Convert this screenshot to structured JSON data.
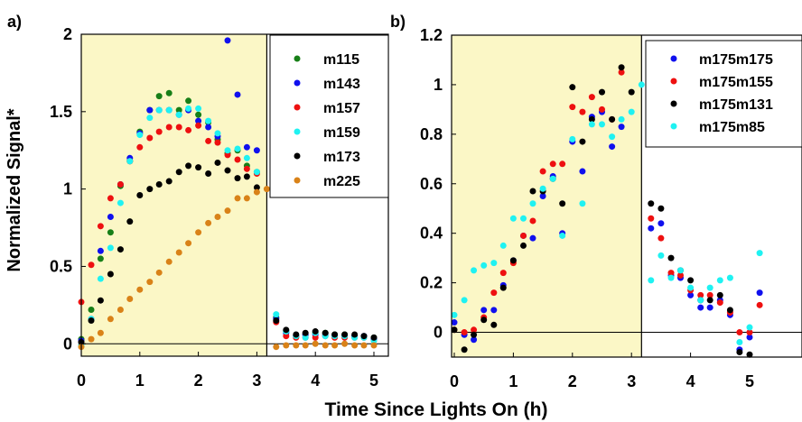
{
  "figure": {
    "xlabel": "Time Since Lights On (h)",
    "ylabel": "Normalized Signal*",
    "shade_color": "#fbf7c6",
    "colors": {
      "green": "#177f17",
      "blue": "#1010ee",
      "red": "#ee1010",
      "cyan": "#1ff2f2",
      "black": "#000000",
      "orange": "#d98218"
    }
  },
  "chart_data": [
    {
      "panel_label": "a)",
      "type": "scatter",
      "xlim": [
        -0.05,
        5.25
      ],
      "ylim": [
        -0.08,
        2.0
      ],
      "xticks": [
        0,
        1,
        2,
        3,
        4,
        5
      ],
      "xtick_labels": [
        "0",
        "1",
        "2",
        "3",
        "4",
        "5"
      ],
      "yticks": [
        0,
        0.5,
        1,
        1.5,
        2
      ],
      "ytick_labels": [
        "0",
        "0.5",
        "1",
        "1.5",
        "2"
      ],
      "shade_x": [
        -0.05,
        3.17
      ],
      "lights_off_line_x": 3.17,
      "zero_line_y": 0,
      "legend_position": "top-right",
      "series": [
        {
          "name": "m115",
          "color": "#177f17",
          "x": [
            0.0,
            0.17,
            0.33,
            0.5,
            0.67,
            0.83,
            1.0,
            1.17,
            1.33,
            1.5,
            1.67,
            1.83,
            2.0,
            2.17,
            2.33,
            2.5,
            2.67,
            2.83,
            3.0,
            3.33,
            3.5,
            3.67,
            3.83,
            4.0,
            4.17,
            4.33,
            4.5,
            4.67,
            4.83,
            5.0
          ],
          "y": [
            0.03,
            0.22,
            0.55,
            0.72,
            1.02,
            1.18,
            1.37,
            1.51,
            1.6,
            1.62,
            1.51,
            1.57,
            1.48,
            1.43,
            1.32,
            1.23,
            1.25,
            1.15,
            1.11,
            0.17,
            0.08,
            0.05,
            0.06,
            0.07,
            0.07,
            0.06,
            0.06,
            0.05,
            0.05,
            0.04
          ]
        },
        {
          "name": "m143",
          "color": "#1010ee",
          "x": [
            0.0,
            0.17,
            0.33,
            0.5,
            0.67,
            0.83,
            1.0,
            1.17,
            1.33,
            1.5,
            1.67,
            1.83,
            2.0,
            2.17,
            2.33,
            2.5,
            2.67,
            2.83,
            3.0,
            3.33,
            3.5,
            3.67,
            3.83,
            4.0,
            4.17,
            4.33,
            4.5,
            4.67,
            4.83,
            5.0
          ],
          "y": [
            0.02,
            0.16,
            0.6,
            0.82,
            1.03,
            1.2,
            1.36,
            1.51,
            1.51,
            1.51,
            1.48,
            1.51,
            1.44,
            1.4,
            1.34,
            1.96,
            1.61,
            1.27,
            1.25,
            0.16,
            0.07,
            0.05,
            0.06,
            0.06,
            0.06,
            0.05,
            0.05,
            0.05,
            0.05,
            0.03
          ]
        },
        {
          "name": "m157",
          "color": "#ee1010",
          "x": [
            0.0,
            0.17,
            0.33,
            0.5,
            0.67,
            0.83,
            1.0,
            1.17,
            1.33,
            1.5,
            1.67,
            1.83,
            2.0,
            2.17,
            2.33,
            2.5,
            2.67,
            2.83,
            3.0,
            3.33,
            3.5,
            3.67,
            3.83,
            4.0,
            4.17,
            4.33,
            4.5,
            4.67,
            4.83,
            5.0
          ],
          "y": [
            0.27,
            0.51,
            0.76,
            0.94,
            1.03,
            1.18,
            1.27,
            1.33,
            1.37,
            1.4,
            1.4,
            1.38,
            1.41,
            1.31,
            1.3,
            1.22,
            1.19,
            1.13,
            1.1,
            0.14,
            0.05,
            0.04,
            0.04,
            0.04,
            0.05,
            0.04,
            0.04,
            0.04,
            0.04,
            0.02
          ]
        },
        {
          "name": "m159",
          "color": "#1ff2f2",
          "x": [
            0.0,
            0.17,
            0.33,
            0.5,
            0.67,
            0.83,
            1.0,
            1.17,
            1.33,
            1.5,
            1.67,
            1.83,
            2.0,
            2.17,
            2.33,
            2.5,
            2.67,
            2.83,
            3.0,
            3.33,
            3.5,
            3.67,
            3.83,
            4.0,
            4.17,
            4.33,
            4.5,
            4.67,
            4.83,
            5.0
          ],
          "y": [
            -0.01,
            0.16,
            0.42,
            0.62,
            0.91,
            1.18,
            1.35,
            1.46,
            1.51,
            1.51,
            1.48,
            1.52,
            1.52,
            1.44,
            1.36,
            1.25,
            1.26,
            1.2,
            1.11,
            0.19,
            0.08,
            0.05,
            0.04,
            0.07,
            0.05,
            0.05,
            0.05,
            0.04,
            0.04,
            0.02
          ]
        },
        {
          "name": "m173",
          "color": "#000000",
          "x": [
            0.0,
            0.17,
            0.33,
            0.5,
            0.67,
            0.83,
            1.0,
            1.17,
            1.33,
            1.5,
            1.67,
            1.83,
            2.0,
            2.17,
            2.33,
            2.5,
            2.67,
            2.83,
            3.0,
            3.33,
            3.5,
            3.67,
            3.83,
            4.0,
            4.17,
            4.33,
            4.5,
            4.67,
            4.83,
            5.0
          ],
          "y": [
            0.01,
            0.15,
            0.28,
            0.45,
            0.61,
            0.79,
            0.96,
            1.0,
            1.03,
            1.05,
            1.11,
            1.15,
            1.14,
            1.1,
            1.17,
            1.12,
            1.07,
            1.08,
            1.01,
            0.15,
            0.09,
            0.06,
            0.07,
            0.08,
            0.07,
            0.06,
            0.06,
            0.06,
            0.05,
            0.04
          ]
        },
        {
          "name": "m225",
          "color": "#d98218",
          "x": [
            0.0,
            0.17,
            0.33,
            0.5,
            0.67,
            0.83,
            1.0,
            1.17,
            1.33,
            1.5,
            1.67,
            1.83,
            2.0,
            2.17,
            2.33,
            2.5,
            2.67,
            2.83,
            3.0,
            3.17,
            3.33,
            3.5,
            3.67,
            3.83,
            4.0,
            4.17,
            4.33,
            4.5,
            4.67,
            4.83,
            5.0
          ],
          "y": [
            -0.02,
            0.03,
            0.07,
            0.16,
            0.22,
            0.29,
            0.35,
            0.4,
            0.46,
            0.53,
            0.59,
            0.65,
            0.72,
            0.78,
            0.82,
            0.86,
            0.94,
            0.94,
            0.98,
            1.0,
            -0.02,
            -0.01,
            -0.01,
            -0.01,
            0.0,
            -0.01,
            -0.01,
            0.0,
            -0.01,
            -0.01,
            -0.01
          ]
        }
      ]
    },
    {
      "panel_label": "b)",
      "type": "scatter",
      "xlim": [
        -0.05,
        5.25
      ],
      "ylim": [
        -0.1,
        1.2
      ],
      "xticks": [
        0,
        1,
        2,
        3,
        4,
        5
      ],
      "xtick_labels": [
        "0",
        "1",
        "2",
        "3",
        "4",
        "5"
      ],
      "yticks": [
        0,
        0.2,
        0.4,
        0.6,
        0.8,
        1,
        1.2
      ],
      "ytick_labels": [
        "0",
        "0.2",
        "0.4",
        "0.6",
        "0.8",
        "1",
        "1.2"
      ],
      "shade_x": [
        -0.05,
        3.17
      ],
      "lights_off_line_x": 3.17,
      "zero_line_y": 0,
      "legend_position": "top-right",
      "series": [
        {
          "name": "m175m175",
          "color": "#1010ee",
          "x": [
            0.0,
            0.17,
            0.33,
            0.5,
            0.67,
            0.83,
            1.0,
            1.17,
            1.33,
            1.5,
            1.67,
            1.83,
            2.0,
            2.17,
            2.33,
            2.5,
            2.67,
            2.83,
            3.33,
            3.5,
            3.67,
            3.83,
            4.0,
            4.17,
            4.33,
            4.5,
            4.67,
            4.83,
            5.0,
            5.17
          ],
          "y": [
            0.04,
            -0.01,
            -0.03,
            0.09,
            0.09,
            0.19,
            0.29,
            0.39,
            0.38,
            0.55,
            0.63,
            0.4,
            0.77,
            0.65,
            0.87,
            0.89,
            0.75,
            0.83,
            0.42,
            0.44,
            0.23,
            0.22,
            0.15,
            0.1,
            0.1,
            0.13,
            0.07,
            -0.07,
            -0.02,
            0.16
          ]
        },
        {
          "name": "m175m155",
          "color": "#ee1010",
          "x": [
            0.0,
            0.17,
            0.33,
            0.5,
            0.67,
            0.83,
            1.0,
            1.17,
            1.33,
            1.5,
            1.67,
            1.83,
            2.0,
            2.17,
            2.33,
            2.5,
            2.67,
            2.83,
            3.33,
            3.5,
            3.67,
            3.83,
            4.0,
            4.17,
            4.33,
            4.5,
            4.67,
            4.83,
            5.0,
            5.17
          ],
          "y": [
            0.01,
            0.0,
            0.01,
            0.06,
            0.16,
            0.24,
            0.28,
            0.39,
            0.45,
            0.65,
            0.68,
            0.68,
            0.91,
            0.89,
            0.95,
            0.9,
            0.86,
            1.05,
            0.46,
            0.38,
            0.24,
            0.23,
            0.17,
            0.15,
            0.15,
            0.12,
            0.08,
            0.0,
            0.0,
            0.11
          ]
        },
        {
          "name": "m175m131",
          "color": "#000000",
          "x": [
            0.0,
            0.17,
            0.33,
            0.5,
            0.67,
            0.83,
            1.0,
            1.17,
            1.33,
            1.5,
            1.67,
            1.83,
            2.0,
            2.17,
            2.33,
            2.5,
            2.67,
            2.83,
            3.0,
            3.33,
            3.5,
            3.67,
            3.83,
            4.0,
            4.17,
            4.33,
            4.5,
            4.67,
            4.83,
            5.0
          ],
          "y": [
            0.01,
            -0.07,
            -0.01,
            0.05,
            0.03,
            0.18,
            0.29,
            0.35,
            0.57,
            0.57,
            0.62,
            0.52,
            0.99,
            0.77,
            0.86,
            0.97,
            0.86,
            1.07,
            0.97,
            0.52,
            0.5,
            0.3,
            0.25,
            0.21,
            0.13,
            0.13,
            0.15,
            0.09,
            -0.08,
            -0.09
          ]
        },
        {
          "name": "m175m85",
          "color": "#1ff2f2",
          "x": [
            0.0,
            0.17,
            0.33,
            0.5,
            0.67,
            0.83,
            1.0,
            1.17,
            1.33,
            1.5,
            1.67,
            1.83,
            2.0,
            2.17,
            2.33,
            2.5,
            2.67,
            2.83,
            3.0,
            3.17,
            3.33,
            3.5,
            3.67,
            3.83,
            4.0,
            4.17,
            4.33,
            4.5,
            4.67,
            4.83,
            5.0,
            5.17
          ],
          "y": [
            0.07,
            0.13,
            0.25,
            0.27,
            0.28,
            0.35,
            0.46,
            0.46,
            0.52,
            0.58,
            0.62,
            0.39,
            0.78,
            0.52,
            0.84,
            0.84,
            0.79,
            0.86,
            0.89,
            1.0,
            0.21,
            0.31,
            0.22,
            0.25,
            0.18,
            0.13,
            0.18,
            0.21,
            0.22,
            -0.04,
            0.02,
            0.32
          ]
        }
      ]
    }
  ]
}
